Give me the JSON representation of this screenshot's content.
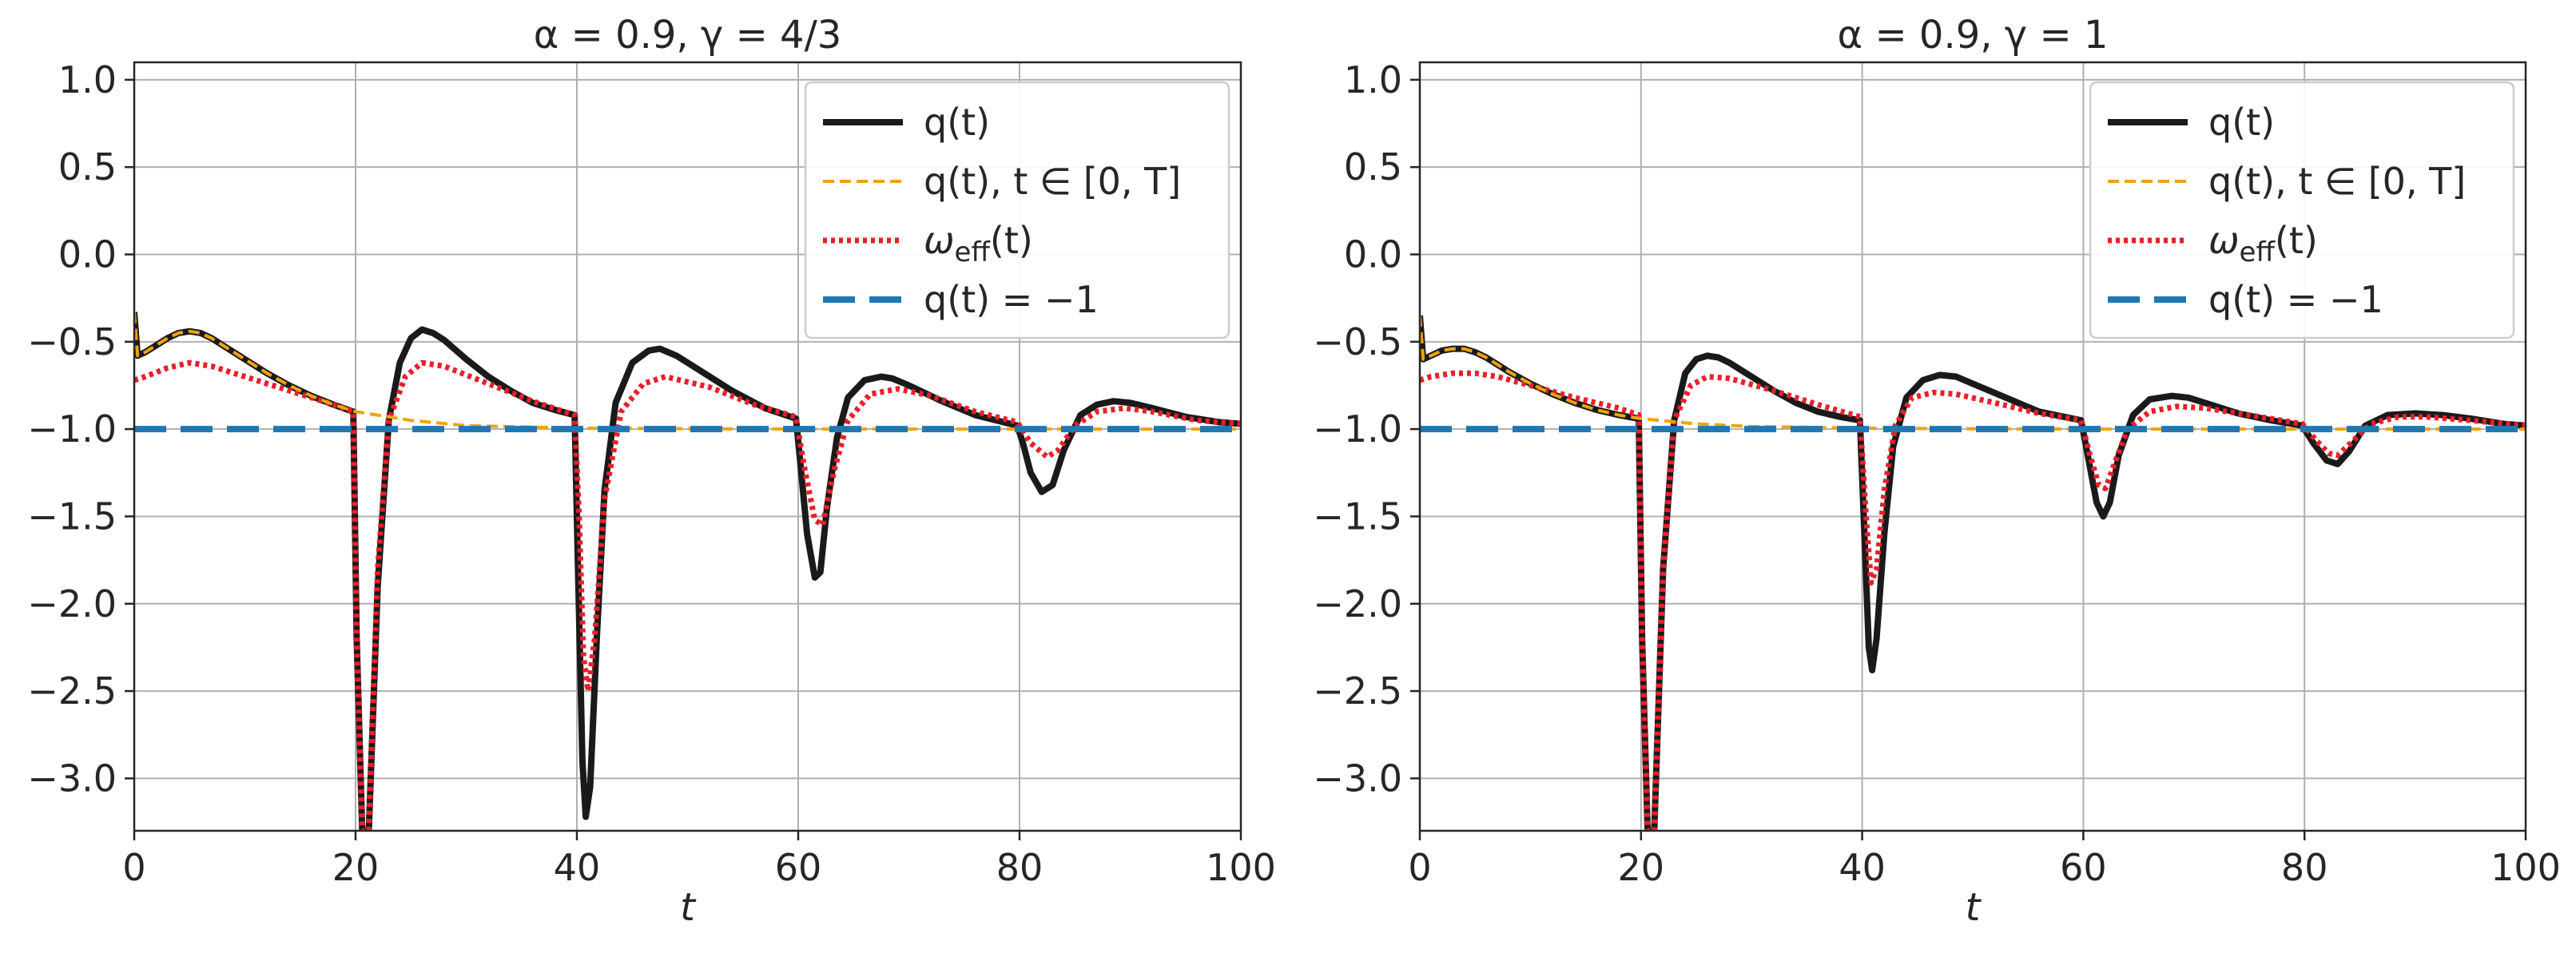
{
  "chart_data": [
    {
      "type": "line",
      "title": "α = 0.9, γ = 4/3",
      "xlabel": "t",
      "ylabel": "",
      "xlim": [
        0,
        100
      ],
      "ylim": [
        -3.3,
        1.1
      ],
      "xticks": [
        0,
        20,
        40,
        60,
        80,
        100
      ],
      "yticks": [
        1.0,
        0.5,
        0.0,
        -0.5,
        -1.0,
        -1.5,
        -2.0,
        -2.5,
        -3.0
      ],
      "xtick_labels": [
        "0",
        "20",
        "40",
        "60",
        "80",
        "100"
      ],
      "ytick_labels": [
        "1.0",
        "0.5",
        "0.0",
        "−0.5",
        "−1.0",
        "−1.5",
        "−2.0",
        "−2.5",
        "−3.0"
      ],
      "grid": true,
      "legend_position": "upper-right",
      "series": [
        {
          "name": "q(t)",
          "color": "#1a1a1a",
          "style": "solid",
          "x": [
            0,
            0.3,
            1,
            2,
            3,
            4,
            5,
            6,
            7,
            8,
            10,
            12,
            14,
            16,
            18,
            19.8,
            20.1,
            20.6,
            21.2,
            22,
            23,
            24,
            25,
            26,
            27,
            28,
            30,
            32,
            34,
            36,
            38,
            39.8,
            40.1,
            40.5,
            40.8,
            41.2,
            41.8,
            42.5,
            43.5,
            45,
            46.5,
            47.5,
            49,
            51,
            54,
            57,
            59.8,
            60.2,
            60.8,
            61.5,
            62,
            62.6,
            63.5,
            64.5,
            66,
            67.5,
            68.5,
            70,
            73,
            76,
            79.8,
            80.3,
            81,
            82,
            83,
            84,
            85.5,
            87,
            88.5,
            90,
            92,
            95,
            98,
            100
          ],
          "y": [
            -0.33,
            -0.58,
            -0.56,
            -0.52,
            -0.48,
            -0.45,
            -0.44,
            -0.45,
            -0.48,
            -0.52,
            -0.6,
            -0.68,
            -0.75,
            -0.81,
            -0.86,
            -0.9,
            -2.2,
            -3.3,
            -3.3,
            -1.9,
            -0.95,
            -0.62,
            -0.48,
            -0.43,
            -0.45,
            -0.49,
            -0.6,
            -0.7,
            -0.78,
            -0.85,
            -0.89,
            -0.92,
            -1.8,
            -2.9,
            -3.22,
            -3.05,
            -2.2,
            -1.35,
            -0.85,
            -0.62,
            -0.55,
            -0.54,
            -0.58,
            -0.66,
            -0.78,
            -0.88,
            -0.94,
            -1.2,
            -1.6,
            -1.85,
            -1.82,
            -1.45,
            -1.05,
            -0.82,
            -0.72,
            -0.7,
            -0.71,
            -0.75,
            -0.84,
            -0.92,
            -0.98,
            -1.08,
            -1.25,
            -1.36,
            -1.32,
            -1.12,
            -0.92,
            -0.86,
            -0.84,
            -0.85,
            -0.88,
            -0.93,
            -0.96,
            -0.97
          ]
        },
        {
          "name": "q(t),  t ∈ [0, T]",
          "color": "#f0a30a",
          "style": "dashed",
          "x": [
            0,
            0.3,
            1,
            2,
            3,
            4,
            5,
            6,
            7,
            8,
            10,
            12,
            14,
            16,
            18,
            20,
            25,
            30,
            40,
            50,
            60,
            80,
            100
          ],
          "y": [
            -0.33,
            -0.58,
            -0.56,
            -0.52,
            -0.48,
            -0.45,
            -0.44,
            -0.45,
            -0.48,
            -0.52,
            -0.6,
            -0.68,
            -0.75,
            -0.81,
            -0.86,
            -0.9,
            -0.95,
            -0.98,
            -0.995,
            -0.998,
            -1.0,
            -1.0,
            -1.0
          ]
        },
        {
          "name": "ω_eff(t)",
          "color": "#e8202a",
          "style": "dotted",
          "x": [
            0,
            1,
            3,
            5,
            7,
            10,
            14,
            18,
            19.8,
            20.1,
            20.6,
            21.2,
            22,
            23,
            24.5,
            26,
            28,
            32,
            36,
            39.8,
            40.2,
            40.6,
            41,
            41.6,
            42.5,
            44,
            46,
            48,
            52,
            56,
            59.8,
            60.5,
            61.5,
            62.2,
            63.2,
            64.5,
            66.5,
            69,
            72,
            76,
            79.8,
            81,
            82.5,
            83.5,
            85,
            87,
            89.5,
            92,
            96,
            100
          ],
          "y": [
            -0.72,
            -0.7,
            -0.65,
            -0.62,
            -0.64,
            -0.7,
            -0.78,
            -0.86,
            -0.9,
            -2.2,
            -3.3,
            -3.3,
            -1.8,
            -0.95,
            -0.7,
            -0.62,
            -0.64,
            -0.74,
            -0.84,
            -0.92,
            -1.5,
            -2.3,
            -2.5,
            -2.2,
            -1.4,
            -0.9,
            -0.74,
            -0.7,
            -0.76,
            -0.86,
            -0.93,
            -1.2,
            -1.52,
            -1.55,
            -1.25,
            -0.95,
            -0.8,
            -0.77,
            -0.81,
            -0.9,
            -0.96,
            -1.08,
            -1.16,
            -1.12,
            -0.98,
            -0.9,
            -0.88,
            -0.9,
            -0.95,
            -0.97
          ]
        },
        {
          "name": "q(t) = −1",
          "color": "#1f77b4",
          "style": "longdash",
          "x": [
            0,
            100
          ],
          "y": [
            -1,
            -1
          ]
        }
      ]
    },
    {
      "type": "line",
      "title": "α = 0.9, γ = 1",
      "xlabel": "t",
      "ylabel": "",
      "xlim": [
        0,
        100
      ],
      "ylim": [
        -3.3,
        1.1
      ],
      "xticks": [
        0,
        20,
        40,
        60,
        80,
        100
      ],
      "yticks": [
        1.0,
        0.5,
        0.0,
        -0.5,
        -1.0,
        -1.5,
        -2.0,
        -2.5,
        -3.0
      ],
      "xtick_labels": [
        "0",
        "20",
        "40",
        "60",
        "80",
        "100"
      ],
      "ytick_labels": [
        "1.0",
        "0.5",
        "0.0",
        "−0.5",
        "−1.0",
        "−1.5",
        "−2.0",
        "−2.5",
        "−3.0"
      ],
      "grid": true,
      "legend_position": "upper-right",
      "series": [
        {
          "name": "q(t)",
          "color": "#1a1a1a",
          "style": "solid",
          "x": [
            0,
            0.3,
            1,
            2,
            3,
            4,
            5,
            6,
            7,
            8,
            10,
            12,
            14,
            16,
            18,
            19.8,
            20.1,
            20.6,
            21.2,
            22,
            23,
            24,
            25,
            26,
            27,
            28,
            30,
            32,
            34,
            36,
            38,
            39.8,
            40.2,
            40.6,
            40.9,
            41.3,
            42,
            42.8,
            44,
            45.5,
            47,
            48.5,
            50,
            53,
            56,
            59.8,
            60.4,
            61.2,
            61.8,
            62.4,
            63.2,
            64.5,
            66,
            68,
            69.5,
            71,
            74,
            77,
            79.8,
            80.8,
            82,
            83,
            84,
            85.5,
            87.5,
            90,
            92.5,
            95,
            98,
            100
          ],
          "y": [
            -0.35,
            -0.6,
            -0.58,
            -0.55,
            -0.54,
            -0.54,
            -0.56,
            -0.59,
            -0.63,
            -0.67,
            -0.74,
            -0.8,
            -0.85,
            -0.89,
            -0.92,
            -0.94,
            -2.2,
            -3.3,
            -3.3,
            -1.8,
            -0.95,
            -0.68,
            -0.6,
            -0.58,
            -0.59,
            -0.62,
            -0.7,
            -0.78,
            -0.85,
            -0.9,
            -0.93,
            -0.95,
            -1.6,
            -2.25,
            -2.38,
            -2.2,
            -1.6,
            -1.1,
            -0.82,
            -0.72,
            -0.69,
            -0.7,
            -0.74,
            -0.82,
            -0.9,
            -0.95,
            -1.15,
            -1.42,
            -1.5,
            -1.42,
            -1.15,
            -0.92,
            -0.83,
            -0.81,
            -0.82,
            -0.85,
            -0.91,
            -0.95,
            -0.98,
            -1.08,
            -1.18,
            -1.2,
            -1.13,
            -0.98,
            -0.92,
            -0.91,
            -0.92,
            -0.94,
            -0.97,
            -0.98
          ]
        },
        {
          "name": "q(t),  t ∈ [0, T]",
          "color": "#f0a30a",
          "style": "dashed",
          "x": [
            0,
            0.3,
            1,
            2,
            3,
            4,
            5,
            6,
            7,
            8,
            10,
            12,
            14,
            16,
            18,
            20,
            25,
            30,
            40,
            50,
            60,
            80,
            100
          ],
          "y": [
            -0.35,
            -0.6,
            -0.58,
            -0.55,
            -0.54,
            -0.54,
            -0.56,
            -0.59,
            -0.63,
            -0.67,
            -0.74,
            -0.8,
            -0.85,
            -0.89,
            -0.92,
            -0.94,
            -0.97,
            -0.985,
            -0.995,
            -0.998,
            -1.0,
            -1.0,
            -1.0
          ]
        },
        {
          "name": "ω_eff(t)",
          "color": "#e8202a",
          "style": "dotted",
          "x": [
            0,
            1,
            3,
            5,
            7,
            10,
            14,
            18,
            19.8,
            20.1,
            20.6,
            21.2,
            22,
            23,
            24.5,
            26,
            28,
            32,
            36,
            39.8,
            40.3,
            40.8,
            41.3,
            42,
            43,
            44.5,
            46.5,
            48.5,
            52,
            56,
            59.8,
            60.6,
            61.4,
            62,
            62.8,
            64,
            66,
            68.5,
            71,
            75,
            79.8,
            81,
            82.2,
            83,
            84.2,
            86,
            88.5,
            91,
            95,
            100
          ],
          "y": [
            -0.72,
            -0.7,
            -0.68,
            -0.68,
            -0.7,
            -0.75,
            -0.82,
            -0.88,
            -0.92,
            -2.2,
            -3.3,
            -3.3,
            -1.8,
            -0.95,
            -0.75,
            -0.7,
            -0.71,
            -0.78,
            -0.86,
            -0.93,
            -1.45,
            -1.88,
            -1.8,
            -1.35,
            -0.98,
            -0.82,
            -0.79,
            -0.8,
            -0.85,
            -0.91,
            -0.95,
            -1.15,
            -1.32,
            -1.34,
            -1.2,
            -1.0,
            -0.9,
            -0.87,
            -0.88,
            -0.92,
            -0.97,
            -1.06,
            -1.14,
            -1.15,
            -1.08,
            -0.97,
            -0.93,
            -0.93,
            -0.95,
            -0.98
          ]
        },
        {
          "name": "q(t) = −1",
          "color": "#1f77b4",
          "style": "longdash",
          "x": [
            0,
            100
          ],
          "y": [
            -1,
            -1
          ]
        }
      ]
    }
  ]
}
